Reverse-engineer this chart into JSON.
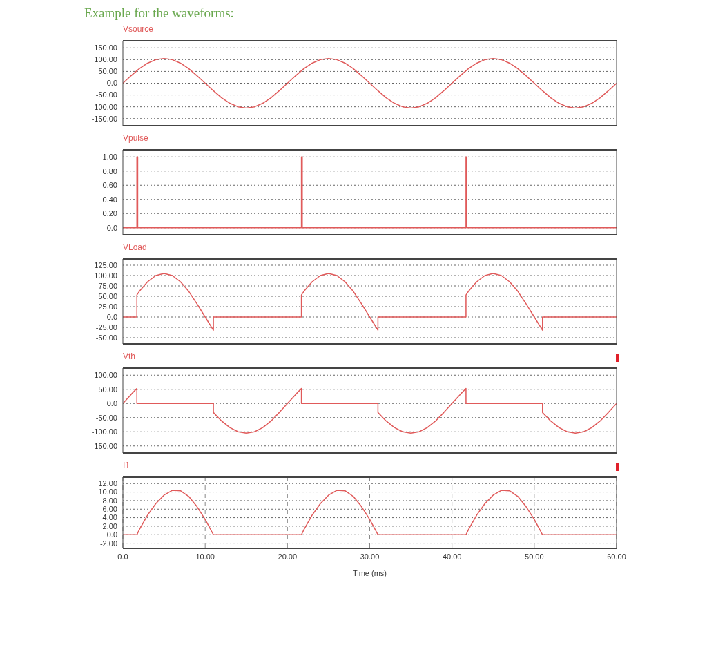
{
  "chart_data": [
    {
      "type": "line",
      "title": "Example for the waveforms:",
      "xlim": [
        0,
        60
      ],
      "ylim": [
        -180,
        180
      ],
      "yticks": [
        {
          "value": 150,
          "label": "150.00"
        },
        {
          "value": 100,
          "label": "100.00"
        },
        {
          "value": 50,
          "label": "50.00"
        },
        {
          "value": 0,
          "label": "0.0"
        },
        {
          "value": -50,
          "label": "-50.00"
        },
        {
          "value": -100,
          "label": "-100.00"
        },
        {
          "value": -150,
          "label": "-150.00"
        }
      ],
      "grid": true,
      "tick_labels": "y",
      "legend": false,
      "marker": "none",
      "series": [
        {
          "name": "Vsource",
          "color": "#e05a5a",
          "x": [
            0,
            1,
            2,
            3,
            4,
            5,
            6,
            7,
            8,
            9,
            10,
            11,
            12,
            13,
            14,
            15,
            16,
            17,
            18,
            19,
            20,
            21,
            22,
            23,
            24,
            25,
            26,
            27,
            28,
            29,
            30,
            31,
            32,
            33,
            34,
            35,
            36,
            37,
            38,
            39,
            40,
            41,
            42,
            43,
            44,
            45,
            46,
            47,
            48,
            49,
            50,
            51,
            52,
            53,
            54,
            55,
            56,
            57,
            58,
            59,
            60
          ],
          "values": [
            0,
            32,
            62,
            85,
            100,
            105,
            100,
            85,
            62,
            32,
            0,
            -32,
            -62,
            -85,
            -100,
            -105,
            -100,
            -85,
            -62,
            -32,
            0,
            32,
            62,
            85,
            100,
            105,
            100,
            85,
            62,
            32,
            0,
            -32,
            -62,
            -85,
            -100,
            -105,
            -100,
            -85,
            -62,
            -32,
            0,
            32,
            62,
            85,
            100,
            105,
            100,
            85,
            62,
            32,
            0,
            -32,
            -62,
            -85,
            -100,
            -105,
            -100,
            -85,
            -62,
            -32,
            0
          ]
        }
      ]
    },
    {
      "type": "line",
      "xlim": [
        0,
        60
      ],
      "ylim": [
        -0.1,
        1.1
      ],
      "yticks": [
        {
          "value": 1,
          "label": "1.00"
        },
        {
          "value": 0.8,
          "label": "0.80"
        },
        {
          "value": 0.6,
          "label": "0.60"
        },
        {
          "value": 0.4,
          "label": "0.40"
        },
        {
          "value": 0.2,
          "label": "0.20"
        },
        {
          "value": 0,
          "label": "0.0"
        }
      ],
      "grid": true,
      "tick_labels": "y",
      "legend": false,
      "marker": "none",
      "series": [
        {
          "name": "Vpulse",
          "color": "#e05a5a",
          "x": [
            0,
            1.7,
            1.7,
            1.8,
            1.8,
            21.7,
            21.7,
            21.8,
            21.8,
            41.7,
            41.7,
            41.8,
            41.8,
            60
          ],
          "values": [
            0,
            0,
            1,
            1,
            0,
            0,
            1,
            1,
            0,
            0,
            1,
            1,
            0,
            0
          ]
        }
      ]
    },
    {
      "type": "line",
      "xlim": [
        0,
        60
      ],
      "ylim": [
        -65,
        140
      ],
      "yticks": [
        {
          "value": 125,
          "label": "125.00"
        },
        {
          "value": 100,
          "label": "100.00"
        },
        {
          "value": 75,
          "label": "75.00"
        },
        {
          "value": 50,
          "label": "50.00"
        },
        {
          "value": 25,
          "label": "25.00"
        },
        {
          "value": 0,
          "label": "0.0"
        },
        {
          "value": -25,
          "label": "-25.00"
        },
        {
          "value": -50,
          "label": "-50.00"
        }
      ],
      "grid": true,
      "tick_labels": "y",
      "legend": false,
      "marker": "none",
      "series": [
        {
          "name": "VLoad",
          "color": "#e05a5a",
          "x": [
            0,
            1.7,
            1.7,
            2,
            3,
            4,
            5,
            6,
            7,
            8,
            9,
            10,
            11,
            11,
            21.7,
            21.7,
            22,
            23,
            24,
            25,
            26,
            27,
            28,
            29,
            30,
            31,
            31,
            41.7,
            41.7,
            42,
            43,
            44,
            45,
            46,
            47,
            48,
            49,
            50,
            51,
            51,
            60
          ],
          "values": [
            0,
            0,
            53,
            62,
            85,
            100,
            105,
            100,
            85,
            62,
            32,
            0,
            -32,
            0,
            0,
            53,
            62,
            85,
            100,
            105,
            100,
            85,
            62,
            32,
            0,
            -32,
            0,
            0,
            53,
            62,
            85,
            100,
            105,
            100,
            85,
            62,
            32,
            0,
            -32,
            0,
            0
          ]
        }
      ]
    },
    {
      "type": "line",
      "xlim": [
        0,
        60
      ],
      "ylim": [
        -175,
        125
      ],
      "yticks": [
        {
          "value": 100,
          "label": "100.00"
        },
        {
          "value": 50,
          "label": "50.00"
        },
        {
          "value": 0,
          "label": "0.0"
        },
        {
          "value": -50,
          "label": "-50.00"
        },
        {
          "value": -100,
          "label": "-100.00"
        },
        {
          "value": -150,
          "label": "-150.00"
        }
      ],
      "grid": true,
      "tick_labels": "y",
      "legend": false,
      "marker": "none",
      "series": [
        {
          "name": "Vth",
          "color": "#e05a5a",
          "x": [
            0,
            1,
            1.7,
            1.7,
            11,
            11,
            12,
            13,
            14,
            15,
            16,
            17,
            18,
            19,
            20,
            21,
            21.7,
            21.7,
            31,
            31,
            32,
            33,
            34,
            35,
            36,
            37,
            38,
            39,
            40,
            41,
            41.7,
            41.7,
            51,
            51,
            52,
            53,
            54,
            55,
            56,
            57,
            58,
            59,
            60
          ],
          "values": [
            0,
            32,
            53,
            0,
            0,
            -32,
            -62,
            -85,
            -100,
            -105,
            -100,
            -85,
            -62,
            -32,
            0,
            32,
            53,
            0,
            0,
            -32,
            -62,
            -85,
            -100,
            -105,
            -100,
            -85,
            -62,
            -32,
            0,
            32,
            53,
            0,
            0,
            -32,
            -62,
            -85,
            -100,
            -105,
            -100,
            -85,
            -62,
            -32,
            0
          ]
        }
      ]
    },
    {
      "type": "line",
      "xlabel": "Time (ms)",
      "xlim": [
        0,
        60
      ],
      "xticks": [
        {
          "value": 0,
          "label": "0.0"
        },
        {
          "value": 10,
          "label": "10.00"
        },
        {
          "value": 20,
          "label": "20.00"
        },
        {
          "value": 30,
          "label": "30.00"
        },
        {
          "value": 40,
          "label": "40.00"
        },
        {
          "value": 50,
          "label": "50.00"
        },
        {
          "value": 60,
          "label": "60.00"
        }
      ],
      "ylim": [
        -3.2,
        13.5
      ],
      "yticks": [
        {
          "value": 12,
          "label": "12.00"
        },
        {
          "value": 10,
          "label": "10.00"
        },
        {
          "value": 8,
          "label": "8.00"
        },
        {
          "value": 6,
          "label": "6.00"
        },
        {
          "value": 4,
          "label": "4.00"
        },
        {
          "value": 2,
          "label": "2.00"
        },
        {
          "value": 0,
          "label": "0.0"
        },
        {
          "value": -2,
          "label": "-2.00"
        }
      ],
      "grid": true,
      "legend": false,
      "marker": "none",
      "series": [
        {
          "name": "I1",
          "color": "#e05a5a",
          "x": [
            0,
            1.7,
            2,
            3,
            4,
            5,
            6,
            7,
            8,
            9,
            10,
            11,
            21.7,
            22,
            23,
            24,
            25,
            26,
            27,
            28,
            29,
            30,
            31,
            41.7,
            42,
            43,
            44,
            45,
            46,
            47,
            48,
            49,
            50,
            51,
            60
          ],
          "values": [
            0,
            0,
            1.2,
            4.6,
            7.3,
            9.3,
            10.4,
            10.3,
            9.0,
            6.6,
            3.6,
            0,
            0,
            1.2,
            4.6,
            7.3,
            9.3,
            10.4,
            10.3,
            9.0,
            6.6,
            3.6,
            0,
            0,
            1.2,
            4.6,
            7.3,
            9.3,
            10.4,
            10.3,
            9.0,
            6.6,
            3.6,
            0,
            0
          ]
        }
      ]
    }
  ]
}
